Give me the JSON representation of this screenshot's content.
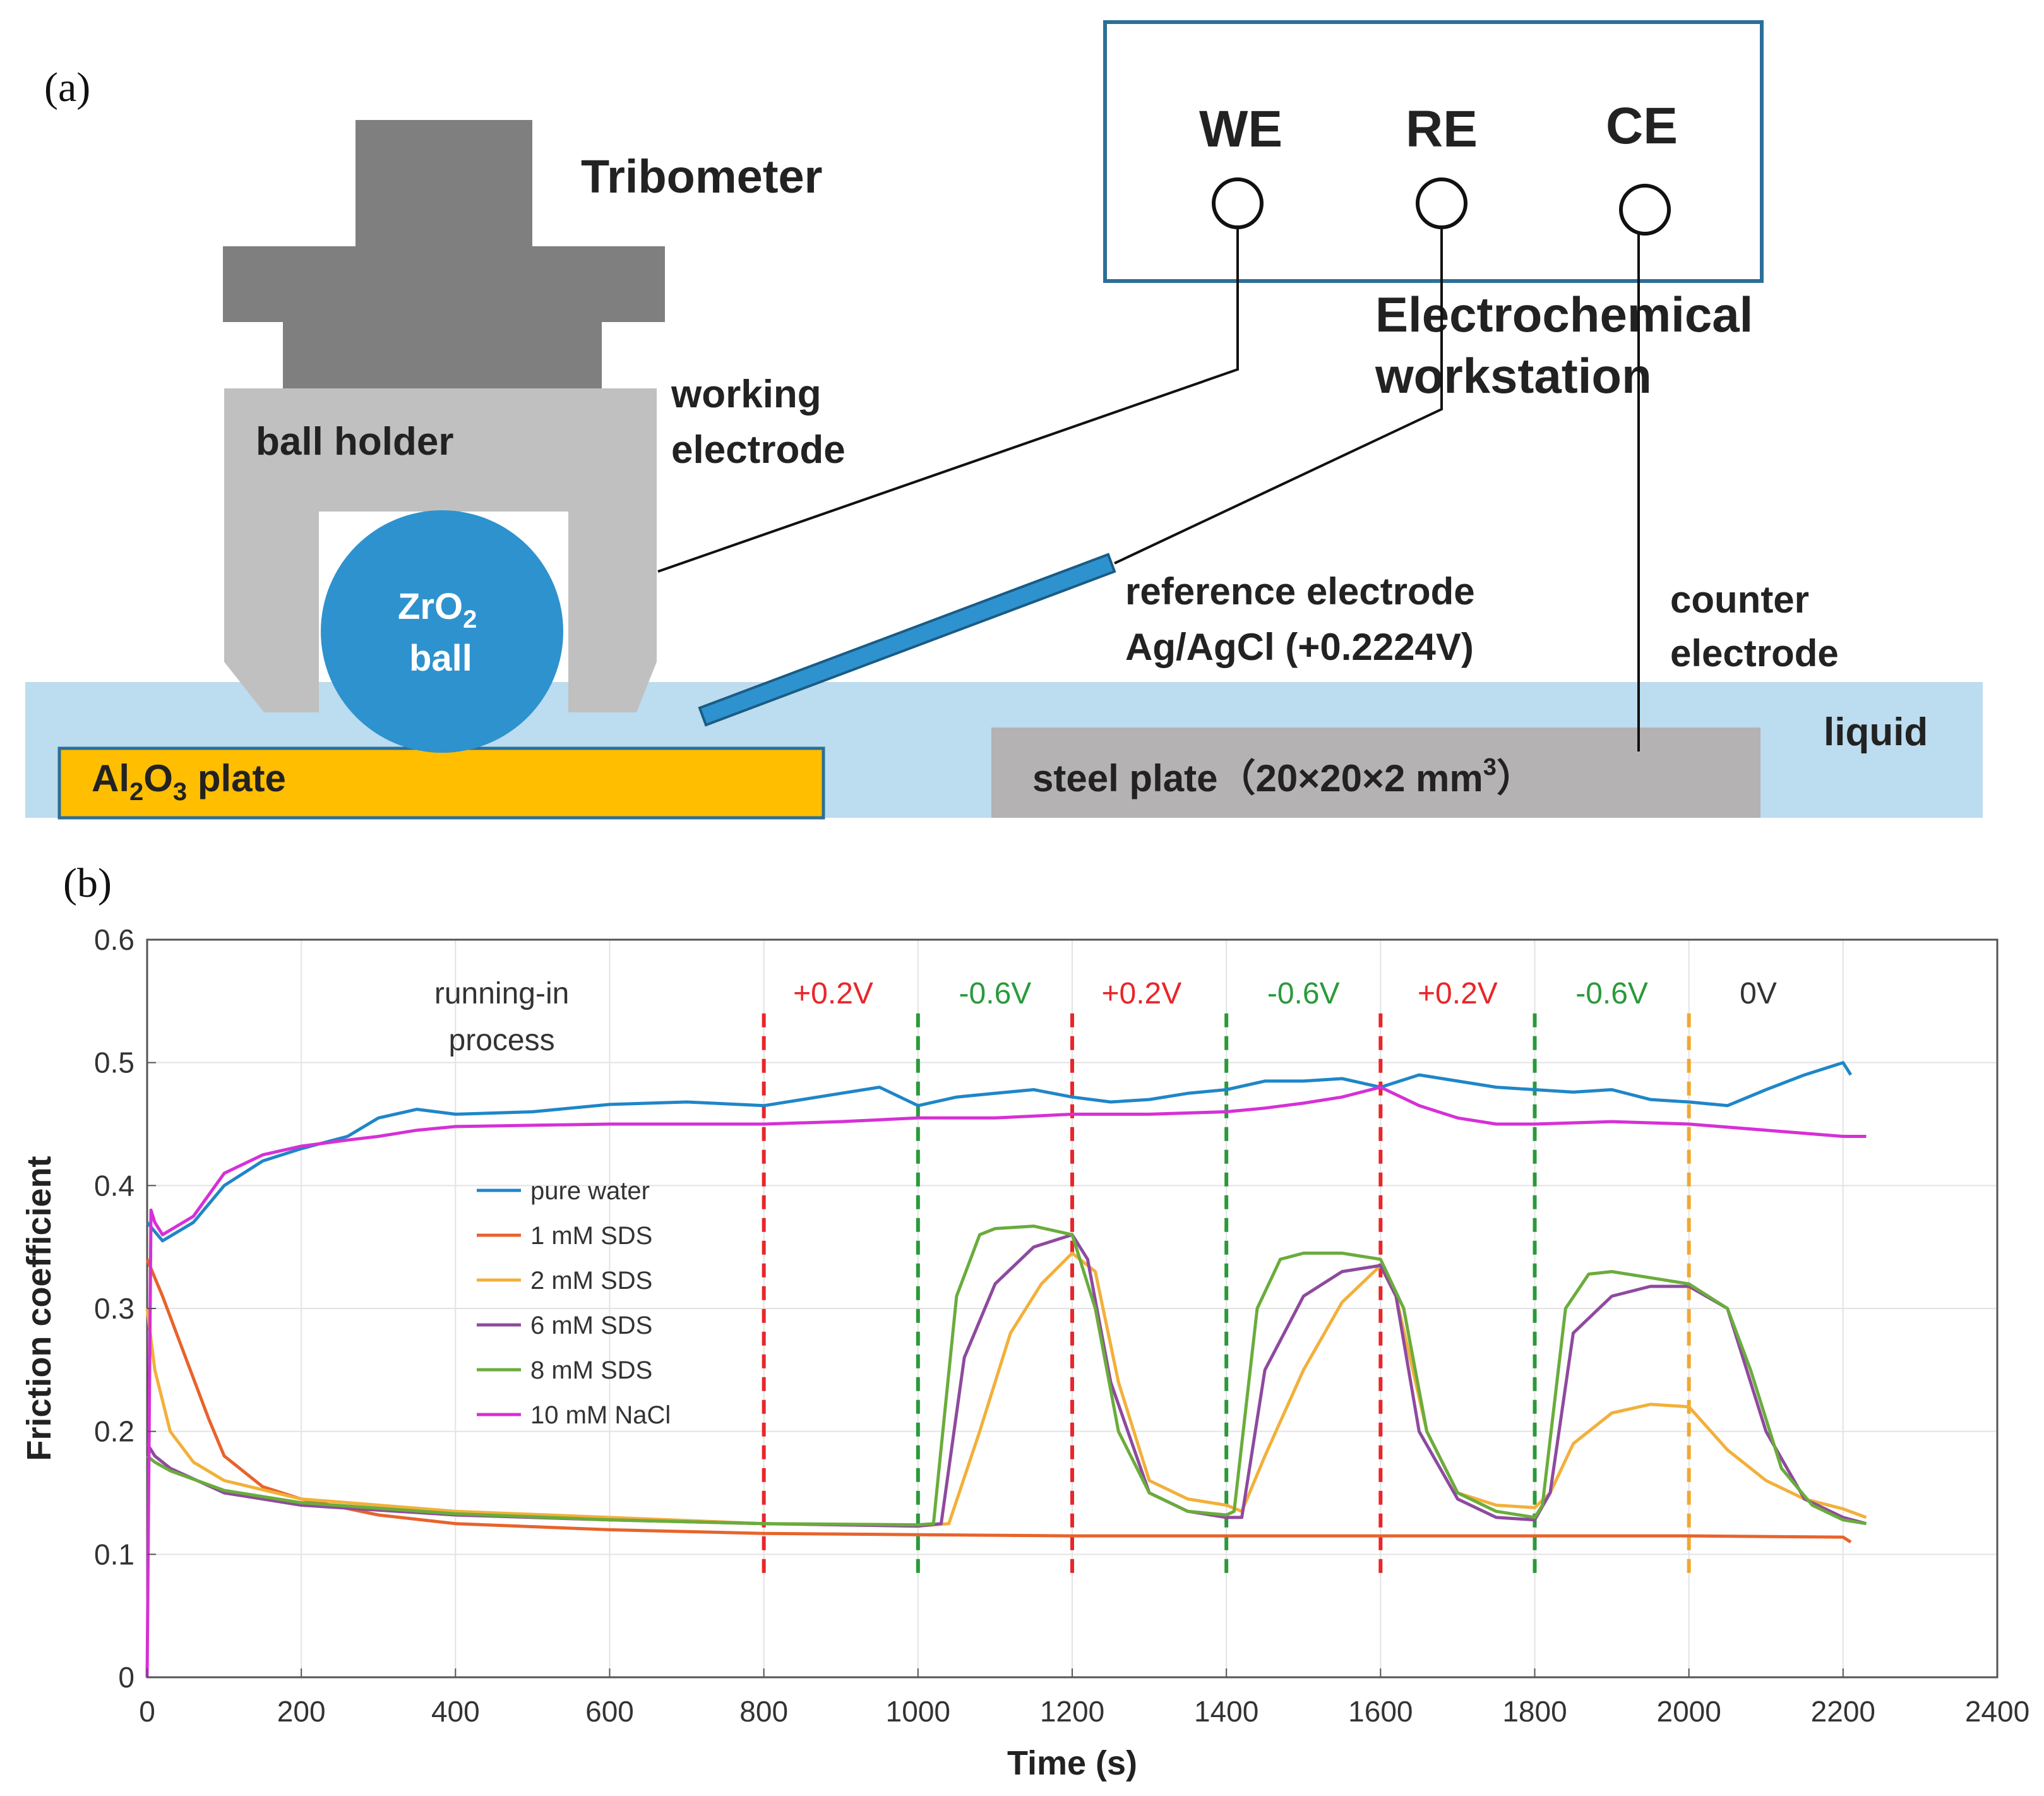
{
  "panel_a": {
    "label": "(a)",
    "tribometer": "Tribometer",
    "ball_holder": "ball  holder",
    "working_electrode_1": "working",
    "working_electrode_2": "electrode",
    "ball_1": "ZrO",
    "ball_1_sub": "2",
    "ball_2": "ball",
    "we": "WE",
    "re": "RE",
    "ce": "CE",
    "workstation_1": "Electrochemical",
    "workstation_2": "workstation",
    "reference_1": "reference electrode",
    "reference_2": "Ag/AgCl (+0.2224V)",
    "counter_1": "counter",
    "counter_2": "electrode",
    "liquid": "liquid",
    "plate_al": "Al",
    "plate_al_sub1": "2",
    "plate_al_o": "O",
    "plate_al_sub2": "3",
    "plate_al_rest": "  plate",
    "steel_plate": "steel plate（20×20×2 mm",
    "steel_plate_sup": "3",
    "steel_plate_end": "）",
    "colors": {
      "liquid": "#bcdcef",
      "ball": "#2e92cf",
      "al_plate": "#ffbe00",
      "steel": "#b4b2b2",
      "holder": "#c0c0c0",
      "tribometer": "#7f7f7f",
      "box": "#2b6f99"
    }
  },
  "panel_b_label": "(b)",
  "chart_data": {
    "type": "line",
    "xlabel": "Time (s)",
    "ylabel": "Friction coefficient",
    "xlim": [
      0,
      2400
    ],
    "ylim": [
      0,
      0.6
    ],
    "xticks": [
      "0",
      "200",
      "400",
      "600",
      "800",
      "1000",
      "1200",
      "1400",
      "1600",
      "1800",
      "2000",
      "2200",
      "2400"
    ],
    "yticks": [
      "0",
      "0.1",
      "0.2",
      "0.3",
      "0.4",
      "0.5",
      "0.6"
    ],
    "grid": true,
    "legend_position": "center-left",
    "annotations": [
      {
        "text": "running-in",
        "x": 460,
        "y": 0.548,
        "color": "#333333"
      },
      {
        "text": "process",
        "x": 460,
        "y": 0.51,
        "color": "#333333"
      },
      {
        "text": "+0.2V",
        "x": 890,
        "y": 0.548,
        "color": "#e8262a"
      },
      {
        "text": "-0.6V",
        "x": 1100,
        "y": 0.548,
        "color": "#2a9a3a"
      },
      {
        "text": "+0.2V",
        "x": 1290,
        "y": 0.548,
        "color": "#e8262a"
      },
      {
        "text": "-0.6V",
        "x": 1500,
        "y": 0.548,
        "color": "#2a9a3a"
      },
      {
        "text": "+0.2V",
        "x": 1700,
        "y": 0.548,
        "color": "#e8262a"
      },
      {
        "text": "-0.6V",
        "x": 1900,
        "y": 0.548,
        "color": "#2a9a3a"
      },
      {
        "text": "0V",
        "x": 2090,
        "y": 0.548,
        "color": "#333333"
      }
    ],
    "vlines": [
      {
        "x": 800,
        "color": "#e8262a"
      },
      {
        "x": 1000,
        "color": "#2a9a3a"
      },
      {
        "x": 1200,
        "color": "#e8262a"
      },
      {
        "x": 1400,
        "color": "#2a9a3a"
      },
      {
        "x": 1600,
        "color": "#e8262a"
      },
      {
        "x": 1800,
        "color": "#2a9a3a"
      },
      {
        "x": 2000,
        "color": "#f0a830"
      }
    ],
    "series": [
      {
        "name": "pure water",
        "color": "#1f86c8",
        "x": [
          0,
          20,
          60,
          100,
          150,
          200,
          260,
          300,
          350,
          400,
          500,
          600,
          700,
          800,
          850,
          900,
          950,
          1000,
          1050,
          1100,
          1150,
          1200,
          1250,
          1300,
          1350,
          1400,
          1450,
          1500,
          1550,
          1600,
          1650,
          1700,
          1750,
          1800,
          1850,
          1900,
          1950,
          2000,
          2050,
          2100,
          2150,
          2200,
          2210
        ],
        "y": [
          0.37,
          0.355,
          0.37,
          0.4,
          0.42,
          0.43,
          0.44,
          0.455,
          0.462,
          0.458,
          0.46,
          0.466,
          0.468,
          0.465,
          0.47,
          0.475,
          0.48,
          0.465,
          0.472,
          0.475,
          0.478,
          0.472,
          0.468,
          0.47,
          0.475,
          0.478,
          0.485,
          0.485,
          0.487,
          0.48,
          0.49,
          0.485,
          0.48,
          0.478,
          0.476,
          0.478,
          0.47,
          0.468,
          0.465,
          0.478,
          0.49,
          0.5,
          0.49
        ]
      },
      {
        "name": "1 mM SDS",
        "color": "#e8632c",
        "x": [
          0,
          20,
          50,
          80,
          100,
          150,
          200,
          300,
          400,
          600,
          800,
          1000,
          1200,
          1400,
          1600,
          1800,
          2000,
          2200,
          2210
        ],
        "y": [
          0.34,
          0.31,
          0.26,
          0.21,
          0.18,
          0.155,
          0.145,
          0.132,
          0.125,
          0.12,
          0.117,
          0.116,
          0.115,
          0.115,
          0.115,
          0.115,
          0.115,
          0.114,
          0.11
        ]
      },
      {
        "name": "2 mM SDS",
        "color": "#f2b03a",
        "x": [
          0,
          10,
          30,
          60,
          100,
          200,
          400,
          600,
          800,
          1000,
          1040,
          1080,
          1120,
          1160,
          1200,
          1230,
          1260,
          1300,
          1350,
          1400,
          1420,
          1450,
          1500,
          1550,
          1600,
          1620,
          1660,
          1700,
          1750,
          1800,
          1820,
          1850,
          1900,
          1950,
          2000,
          2050,
          2100,
          2150,
          2200,
          2230
        ],
        "y": [
          0.3,
          0.25,
          0.2,
          0.175,
          0.16,
          0.145,
          0.135,
          0.13,
          0.125,
          0.123,
          0.125,
          0.2,
          0.28,
          0.32,
          0.345,
          0.33,
          0.24,
          0.16,
          0.145,
          0.14,
          0.135,
          0.18,
          0.25,
          0.305,
          0.335,
          0.31,
          0.2,
          0.15,
          0.14,
          0.138,
          0.15,
          0.19,
          0.215,
          0.222,
          0.22,
          0.185,
          0.16,
          0.145,
          0.137,
          0.13
        ]
      },
      {
        "name": "6 mM SDS",
        "color": "#8e4a9e",
        "x": [
          0,
          10,
          30,
          100,
          200,
          400,
          600,
          800,
          1000,
          1030,
          1060,
          1100,
          1150,
          1200,
          1220,
          1250,
          1300,
          1350,
          1400,
          1420,
          1450,
          1500,
          1550,
          1600,
          1620,
          1650,
          1700,
          1750,
          1800,
          1820,
          1850,
          1900,
          1950,
          2000,
          2050,
          2100,
          2150,
          2200,
          2230
        ],
        "y": [
          0.19,
          0.18,
          0.17,
          0.15,
          0.14,
          0.132,
          0.128,
          0.125,
          0.123,
          0.125,
          0.26,
          0.32,
          0.35,
          0.36,
          0.34,
          0.24,
          0.15,
          0.135,
          0.13,
          0.13,
          0.25,
          0.31,
          0.33,
          0.335,
          0.31,
          0.2,
          0.145,
          0.13,
          0.128,
          0.15,
          0.28,
          0.31,
          0.318,
          0.318,
          0.3,
          0.2,
          0.145,
          0.13,
          0.125
        ]
      },
      {
        "name": "8 mM SDS",
        "color": "#6aac3c",
        "x": [
          0,
          10,
          30,
          100,
          200,
          400,
          600,
          800,
          1000,
          1020,
          1050,
          1080,
          1100,
          1150,
          1200,
          1230,
          1260,
          1300,
          1350,
          1400,
          1410,
          1440,
          1470,
          1500,
          1550,
          1600,
          1630,
          1660,
          1700,
          1750,
          1800,
          1810,
          1840,
          1870,
          1900,
          1950,
          2000,
          2050,
          2080,
          2120,
          2160,
          2200,
          2230
        ],
        "y": [
          0.18,
          0.175,
          0.168,
          0.152,
          0.142,
          0.133,
          0.128,
          0.125,
          0.124,
          0.125,
          0.31,
          0.36,
          0.365,
          0.367,
          0.36,
          0.3,
          0.2,
          0.15,
          0.135,
          0.132,
          0.135,
          0.3,
          0.34,
          0.345,
          0.345,
          0.34,
          0.3,
          0.2,
          0.15,
          0.135,
          0.13,
          0.14,
          0.3,
          0.328,
          0.33,
          0.325,
          0.32,
          0.3,
          0.25,
          0.17,
          0.14,
          0.128,
          0.125
        ]
      },
      {
        "name": "10 mM NaCl",
        "color": "#d630d6",
        "x": [
          0,
          5,
          10,
          20,
          60,
          100,
          150,
          200,
          260,
          300,
          350,
          400,
          500,
          600,
          700,
          800,
          900,
          1000,
          1100,
          1200,
          1300,
          1400,
          1450,
          1500,
          1550,
          1600,
          1650,
          1700,
          1750,
          1800,
          1900,
          2000,
          2100,
          2200,
          2230
        ],
        "y": [
          0.0,
          0.38,
          0.37,
          0.36,
          0.375,
          0.41,
          0.425,
          0.432,
          0.437,
          0.44,
          0.445,
          0.448,
          0.449,
          0.45,
          0.45,
          0.45,
          0.452,
          0.455,
          0.455,
          0.458,
          0.458,
          0.46,
          0.463,
          0.467,
          0.472,
          0.48,
          0.465,
          0.455,
          0.45,
          0.45,
          0.452,
          0.45,
          0.445,
          0.44,
          0.44
        ]
      }
    ]
  }
}
